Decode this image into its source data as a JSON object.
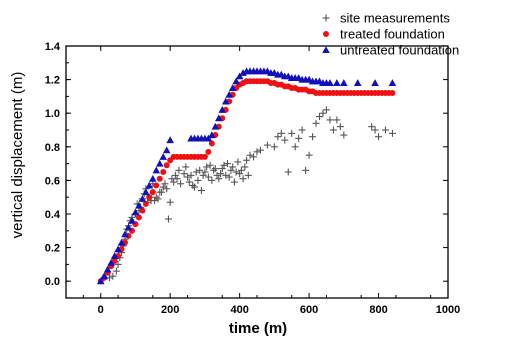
{
  "chart_data": {
    "type": "scatter",
    "title": "",
    "xlabel": "time (m)",
    "ylabel": "vertical displacement (m)",
    "xlim": [
      -100,
      1000
    ],
    "ylim": [
      -0.1,
      1.4
    ],
    "xticks": [
      0,
      200,
      400,
      600,
      800,
      1000
    ],
    "yticks": [
      0.0,
      0.2,
      0.4,
      0.6,
      0.8,
      1.0,
      1.2,
      1.4
    ],
    "xtick_labels": [
      "0",
      "200",
      "400",
      "600",
      "800",
      "1000"
    ],
    "ytick_labels": [
      "0.0",
      "0.2",
      "0.4",
      "0.6",
      "0.8",
      "1.0",
      "1.2",
      "1.4"
    ],
    "grid": false,
    "legend_position": "top-right",
    "series": [
      {
        "name": "site measurements",
        "marker": "plus",
        "color": "#555555",
        "points": [
          [
            25,
            0.02
          ],
          [
            35,
            0.03
          ],
          [
            45,
            0.06
          ],
          [
            50,
            0.1
          ],
          [
            55,
            0.14
          ],
          [
            60,
            0.17
          ],
          [
            65,
            0.21
          ],
          [
            70,
            0.25
          ],
          [
            75,
            0.31
          ],
          [
            80,
            0.33
          ],
          [
            85,
            0.36
          ],
          [
            90,
            0.38
          ],
          [
            95,
            0.35
          ],
          [
            100,
            0.4
          ],
          [
            105,
            0.46
          ],
          [
            110,
            0.42
          ],
          [
            115,
            0.44
          ],
          [
            120,
            0.49
          ],
          [
            125,
            0.52
          ],
          [
            130,
            0.55
          ],
          [
            135,
            0.47
          ],
          [
            140,
            0.5
          ],
          [
            145,
            0.48
          ],
          [
            150,
            0.58
          ],
          [
            155,
            0.48
          ],
          [
            160,
            0.5
          ],
          [
            165,
            0.49
          ],
          [
            170,
            0.53
          ],
          [
            175,
            0.53
          ],
          [
            180,
            0.56
          ],
          [
            185,
            0.58
          ],
          [
            190,
            0.55
          ],
          [
            195,
            0.37
          ],
          [
            200,
            0.47
          ],
          [
            205,
            0.61
          ],
          [
            210,
            0.59
          ],
          [
            215,
            0.63
          ],
          [
            220,
            0.61
          ],
          [
            225,
            0.66
          ],
          [
            230,
            0.58
          ],
          [
            240,
            0.64
          ],
          [
            245,
            0.68
          ],
          [
            250,
            0.62
          ],
          [
            255,
            0.59
          ],
          [
            260,
            0.63
          ],
          [
            265,
            0.57
          ],
          [
            270,
            0.56
          ],
          [
            275,
            0.65
          ],
          [
            280,
            0.6
          ],
          [
            285,
            0.66
          ],
          [
            290,
            0.54
          ],
          [
            295,
            0.63
          ],
          [
            300,
            0.65
          ],
          [
            305,
            0.68
          ],
          [
            310,
            0.62
          ],
          [
            315,
            0.69
          ],
          [
            320,
            0.6
          ],
          [
            325,
            0.66
          ],
          [
            330,
            0.67
          ],
          [
            335,
            0.63
          ],
          [
            340,
            0.61
          ],
          [
            345,
            0.64
          ],
          [
            350,
            0.67
          ],
          [
            355,
            0.69
          ],
          [
            360,
            0.63
          ],
          [
            365,
            0.7
          ],
          [
            370,
            0.62
          ],
          [
            375,
            0.66
          ],
          [
            380,
            0.68
          ],
          [
            385,
            0.59
          ],
          [
            390,
            0.65
          ],
          [
            395,
            0.71
          ],
          [
            400,
            0.64
          ],
          [
            405,
            0.66
          ],
          [
            410,
            0.61
          ],
          [
            415,
            0.68
          ],
          [
            420,
            0.72
          ],
          [
            425,
            0.63
          ],
          [
            430,
            0.75
          ],
          [
            440,
            0.74
          ],
          [
            450,
            0.77
          ],
          [
            460,
            0.78
          ],
          [
            480,
            0.81
          ],
          [
            500,
            0.8
          ],
          [
            510,
            0.86
          ],
          [
            520,
            0.88
          ],
          [
            530,
            0.84
          ],
          [
            540,
            0.65
          ],
          [
            550,
            0.88
          ],
          [
            560,
            0.8
          ],
          [
            570,
            0.85
          ],
          [
            580,
            0.9
          ],
          [
            590,
            0.66
          ],
          [
            600,
            0.75
          ],
          [
            610,
            0.86
          ],
          [
            620,
            0.94
          ],
          [
            630,
            0.98
          ],
          [
            640,
            1.0
          ],
          [
            650,
            1.02
          ],
          [
            660,
            0.96
          ],
          [
            670,
            0.9
          ],
          [
            680,
            0.96
          ],
          [
            690,
            0.92
          ],
          [
            700,
            0.87
          ],
          [
            780,
            0.92
          ],
          [
            790,
            0.9
          ],
          [
            800,
            0.86
          ],
          [
            820,
            0.9
          ],
          [
            840,
            0.88
          ]
        ]
      },
      {
        "name": "treated foundation",
        "marker": "circle",
        "color": "#ee1111",
        "points": [
          [
            0,
            0.0
          ],
          [
            10,
            0.02
          ],
          [
            20,
            0.05
          ],
          [
            30,
            0.09
          ],
          [
            40,
            0.12
          ],
          [
            50,
            0.15
          ],
          [
            60,
            0.19
          ],
          [
            70,
            0.23
          ],
          [
            80,
            0.27
          ],
          [
            90,
            0.3
          ],
          [
            100,
            0.34
          ],
          [
            110,
            0.38
          ],
          [
            120,
            0.42
          ],
          [
            130,
            0.46
          ],
          [
            140,
            0.5
          ],
          [
            150,
            0.53
          ],
          [
            160,
            0.57
          ],
          [
            170,
            0.61
          ],
          [
            180,
            0.65
          ],
          [
            190,
            0.69
          ],
          [
            200,
            0.72
          ],
          [
            210,
            0.74
          ],
          [
            220,
            0.74
          ],
          [
            230,
            0.74
          ],
          [
            240,
            0.74
          ],
          [
            250,
            0.74
          ],
          [
            260,
            0.74
          ],
          [
            270,
            0.74
          ],
          [
            280,
            0.74
          ],
          [
            290,
            0.74
          ],
          [
            300,
            0.74
          ],
          [
            310,
            0.77
          ],
          [
            320,
            0.82
          ],
          [
            330,
            0.87
          ],
          [
            340,
            0.92
          ],
          [
            350,
            0.97
          ],
          [
            360,
            1.02
          ],
          [
            370,
            1.07
          ],
          [
            380,
            1.11
          ],
          [
            390,
            1.15
          ],
          [
            400,
            1.17
          ],
          [
            410,
            1.18
          ],
          [
            420,
            1.19
          ],
          [
            430,
            1.19
          ],
          [
            440,
            1.19
          ],
          [
            450,
            1.19
          ],
          [
            460,
            1.19
          ],
          [
            470,
            1.19
          ],
          [
            480,
            1.19
          ],
          [
            490,
            1.18
          ],
          [
            500,
            1.18
          ],
          [
            510,
            1.17
          ],
          [
            520,
            1.17
          ],
          [
            530,
            1.16
          ],
          [
            540,
            1.16
          ],
          [
            550,
            1.15
          ],
          [
            560,
            1.15
          ],
          [
            570,
            1.14
          ],
          [
            580,
            1.14
          ],
          [
            590,
            1.14
          ],
          [
            600,
            1.13
          ],
          [
            610,
            1.13
          ],
          [
            620,
            1.12
          ],
          [
            630,
            1.12
          ],
          [
            640,
            1.12
          ],
          [
            650,
            1.12
          ],
          [
            660,
            1.12
          ],
          [
            670,
            1.12
          ],
          [
            680,
            1.12
          ],
          [
            690,
            1.12
          ],
          [
            700,
            1.12
          ],
          [
            710,
            1.12
          ],
          [
            720,
            1.12
          ],
          [
            730,
            1.12
          ],
          [
            740,
            1.12
          ],
          [
            750,
            1.12
          ],
          [
            760,
            1.12
          ],
          [
            770,
            1.12
          ],
          [
            780,
            1.12
          ],
          [
            790,
            1.12
          ],
          [
            800,
            1.12
          ],
          [
            810,
            1.12
          ],
          [
            820,
            1.12
          ],
          [
            830,
            1.12
          ],
          [
            840,
            1.12
          ]
        ]
      },
      {
        "name": "untreated foundation",
        "marker": "triangle",
        "color": "#1111bb",
        "points": [
          [
            0,
            0.0
          ],
          [
            10,
            0.03
          ],
          [
            20,
            0.07
          ],
          [
            30,
            0.11
          ],
          [
            40,
            0.15
          ],
          [
            50,
            0.19
          ],
          [
            60,
            0.23
          ],
          [
            70,
            0.28
          ],
          [
            80,
            0.32
          ],
          [
            90,
            0.36
          ],
          [
            100,
            0.41
          ],
          [
            110,
            0.45
          ],
          [
            120,
            0.49
          ],
          [
            130,
            0.53
          ],
          [
            140,
            0.57
          ],
          [
            150,
            0.61
          ],
          [
            160,
            0.66
          ],
          [
            170,
            0.7
          ],
          [
            180,
            0.74
          ],
          [
            190,
            0.78
          ],
          [
            200,
            0.84
          ],
          [
            260,
            0.85
          ],
          [
            270,
            0.85
          ],
          [
            280,
            0.85
          ],
          [
            290,
            0.85
          ],
          [
            300,
            0.85
          ],
          [
            310,
            0.85
          ],
          [
            320,
            0.87
          ],
          [
            330,
            0.92
          ],
          [
            340,
            0.97
          ],
          [
            350,
            1.02
          ],
          [
            360,
            1.07
          ],
          [
            370,
            1.11
          ],
          [
            380,
            1.15
          ],
          [
            390,
            1.19
          ],
          [
            400,
            1.22
          ],
          [
            410,
            1.24
          ],
          [
            420,
            1.25
          ],
          [
            430,
            1.25
          ],
          [
            440,
            1.25
          ],
          [
            450,
            1.25
          ],
          [
            460,
            1.25
          ],
          [
            470,
            1.25
          ],
          [
            480,
            1.25
          ],
          [
            490,
            1.24
          ],
          [
            500,
            1.24
          ],
          [
            510,
            1.23
          ],
          [
            520,
            1.23
          ],
          [
            530,
            1.22
          ],
          [
            540,
            1.22
          ],
          [
            550,
            1.21
          ],
          [
            560,
            1.21
          ],
          [
            570,
            1.21
          ],
          [
            580,
            1.2
          ],
          [
            590,
            1.2
          ],
          [
            600,
            1.2
          ],
          [
            610,
            1.19
          ],
          [
            620,
            1.19
          ],
          [
            630,
            1.19
          ],
          [
            640,
            1.18
          ],
          [
            650,
            1.18
          ],
          [
            660,
            1.18
          ],
          [
            680,
            1.18
          ],
          [
            700,
            1.18
          ],
          [
            740,
            1.18
          ],
          [
            790,
            1.18
          ],
          [
            840,
            1.18
          ]
        ]
      }
    ]
  }
}
